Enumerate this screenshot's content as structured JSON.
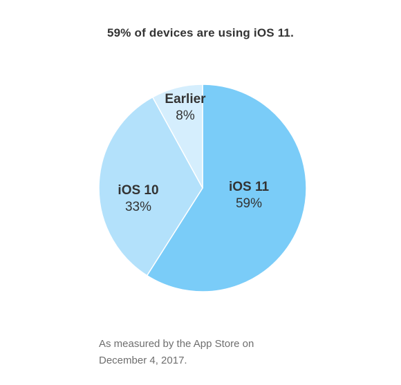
{
  "chart_data": {
    "type": "pie",
    "title": "59% of devices are using iOS 11.",
    "slices": [
      {
        "label": "iOS 11",
        "value": 59,
        "display": "59%",
        "color": "#7accf8"
      },
      {
        "label": "iOS 10",
        "value": 33,
        "display": "33%",
        "color": "#b3e1fb"
      },
      {
        "label": "Earlier",
        "value": 8,
        "display": "8%",
        "color": "#d5eefd"
      }
    ],
    "footnote_lines": [
      "As measured by the App Store on",
      "December 4, 2017."
    ]
  }
}
